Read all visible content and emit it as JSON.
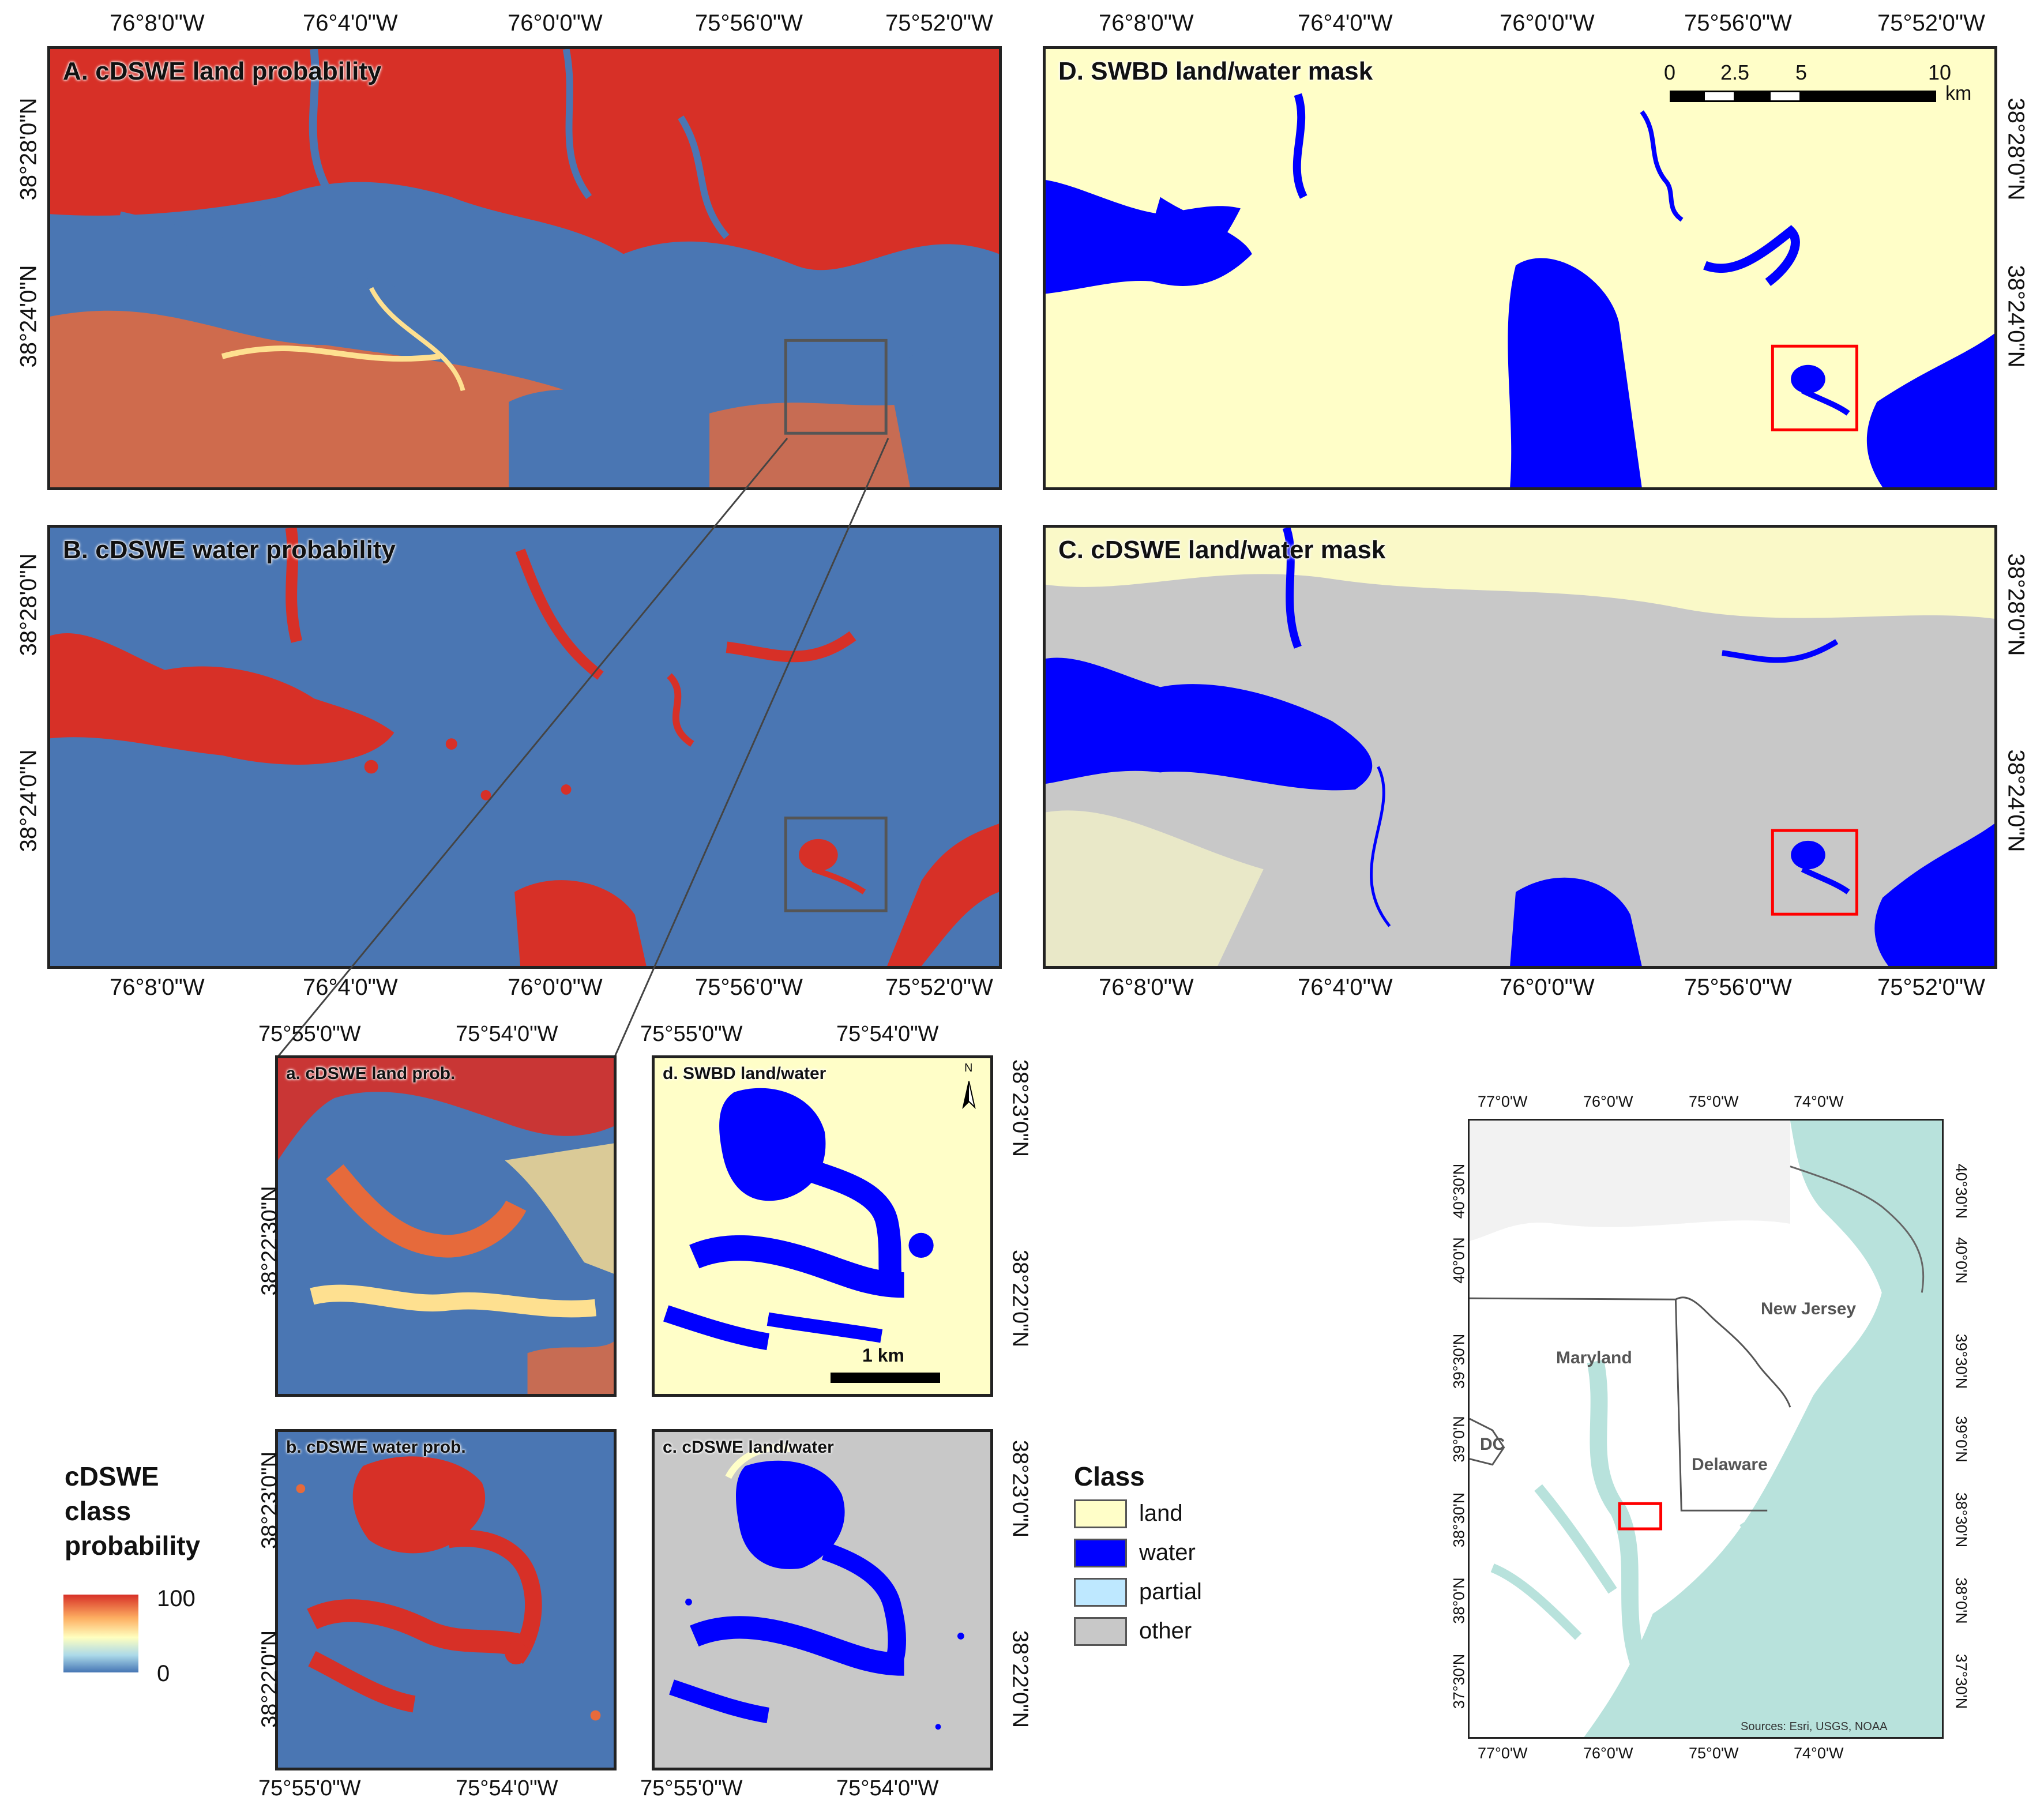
{
  "panels": {
    "A": {
      "title": "A. cDSWE land probability"
    },
    "B": {
      "title": "B. cDSWE water probability"
    },
    "C": {
      "title": "C. cDSWE land/water mask"
    },
    "D": {
      "title": "D. SWBD land/water mask"
    },
    "a": {
      "title": "a. cDSWE land prob."
    },
    "b": {
      "title": "b. cDSWE water prob."
    },
    "c": {
      "title": "c. cDSWE land/water"
    },
    "d": {
      "title": "d. SWBD land/water"
    }
  },
  "axes": {
    "main_lon": [
      "76°8'0\"W",
      "76°4'0\"W",
      "76°0'0\"W",
      "75°56'0\"W",
      "75°52'0\"W"
    ],
    "main_lat": [
      "38°28'0\"N",
      "38°24'0\"N"
    ],
    "zoom_lon": [
      "75°55'0\"W",
      "75°54'0\"W"
    ],
    "zoom_lat": [
      "38°23'0\"N",
      "38°22'30\"N",
      "38°22'0\"N"
    ],
    "inset_lon": [
      "77°0'W",
      "76°0'W",
      "75°0'W",
      "74°0'W"
    ],
    "inset_lat": [
      "40°30'N",
      "40°0'N",
      "39°30'N",
      "39°0'N",
      "38°30'N",
      "38°0'N",
      "37°30'N"
    ]
  },
  "scalebar": {
    "ticks": [
      "0",
      "2.5",
      "5",
      "10"
    ],
    "unit": "km",
    "zoom_label": "1 km"
  },
  "north_arrow": {
    "label": "N"
  },
  "prob_legend": {
    "title_lines": [
      "cDSWE",
      "class",
      "probability"
    ],
    "max": "100",
    "min": "0"
  },
  "class_legend": {
    "title": "Class",
    "items": [
      {
        "label": "land",
        "color": "#fffec8"
      },
      {
        "label": "water",
        "color": "#0000ff"
      },
      {
        "label": "partial",
        "color": "#bee8ff"
      },
      {
        "label": "other",
        "color": "#c8c8c8"
      }
    ]
  },
  "inset": {
    "states": [
      "New Jersey",
      "Maryland",
      "Delaware",
      "DC"
    ],
    "sources": "Sources: Esri, USGS, NOAA"
  },
  "colors": {
    "prob_high": "#d73027",
    "prob_mid": "#ffffbf",
    "prob_low": "#4575b4",
    "land": "#fffec8",
    "water": "#0000ff",
    "partial": "#bee8ff",
    "other": "#c8c8c8",
    "highlight_box": "#ff0000",
    "zoom_box": "#555555",
    "inset_water": "#b8e2dc"
  }
}
